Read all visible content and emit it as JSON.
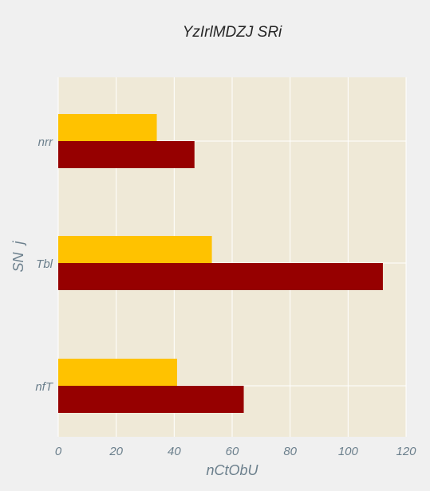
{
  "chart_data": {
    "type": "bar",
    "orientation": "horizontal",
    "title": "YzIrlMDZJ SRi",
    "xlabel": "nCtObU",
    "ylabel": "SN  j",
    "categories": [
      "nrr",
      "Tbl",
      "nfT"
    ],
    "series": [
      {
        "color": "#ffc200",
        "values": [
          34,
          53,
          41
        ]
      },
      {
        "color": "#960000",
        "values": [
          47,
          112,
          64
        ]
      }
    ],
    "xlim": [
      0,
      120
    ],
    "xticks": [
      "0",
      "20",
      "40",
      "60",
      "80",
      "100",
      "120"
    ],
    "grid": true,
    "background": "#efe9d7"
  }
}
